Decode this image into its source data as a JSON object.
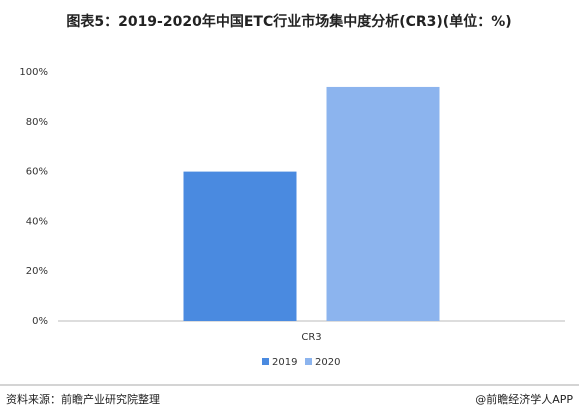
{
  "chart_data": {
    "type": "bar",
    "title": "图表5：2019-2020年中国ETC行业市场集中度分析(CR3)(单位：%)",
    "categories": [
      "CR3"
    ],
    "series": [
      {
        "name": "2019",
        "color": "#4a8ae0",
        "values": [
          60
        ]
      },
      {
        "name": "2020",
        "color": "#8cb4ee",
        "values": [
          94
        ]
      }
    ],
    "ylim": [
      0,
      100
    ],
    "yticks": [
      {
        "value": 0,
        "label": "0%"
      },
      {
        "value": 20,
        "label": "20%"
      },
      {
        "value": 40,
        "label": "40%"
      },
      {
        "value": 60,
        "label": "60%"
      },
      {
        "value": 80,
        "label": "80%"
      },
      {
        "value": 100,
        "label": "100%"
      }
    ],
    "grid": false,
    "legend": "bottom",
    "source": "资料来源：前瞻产业研究院整理",
    "credit": "@前瞻经济学人APP"
  }
}
